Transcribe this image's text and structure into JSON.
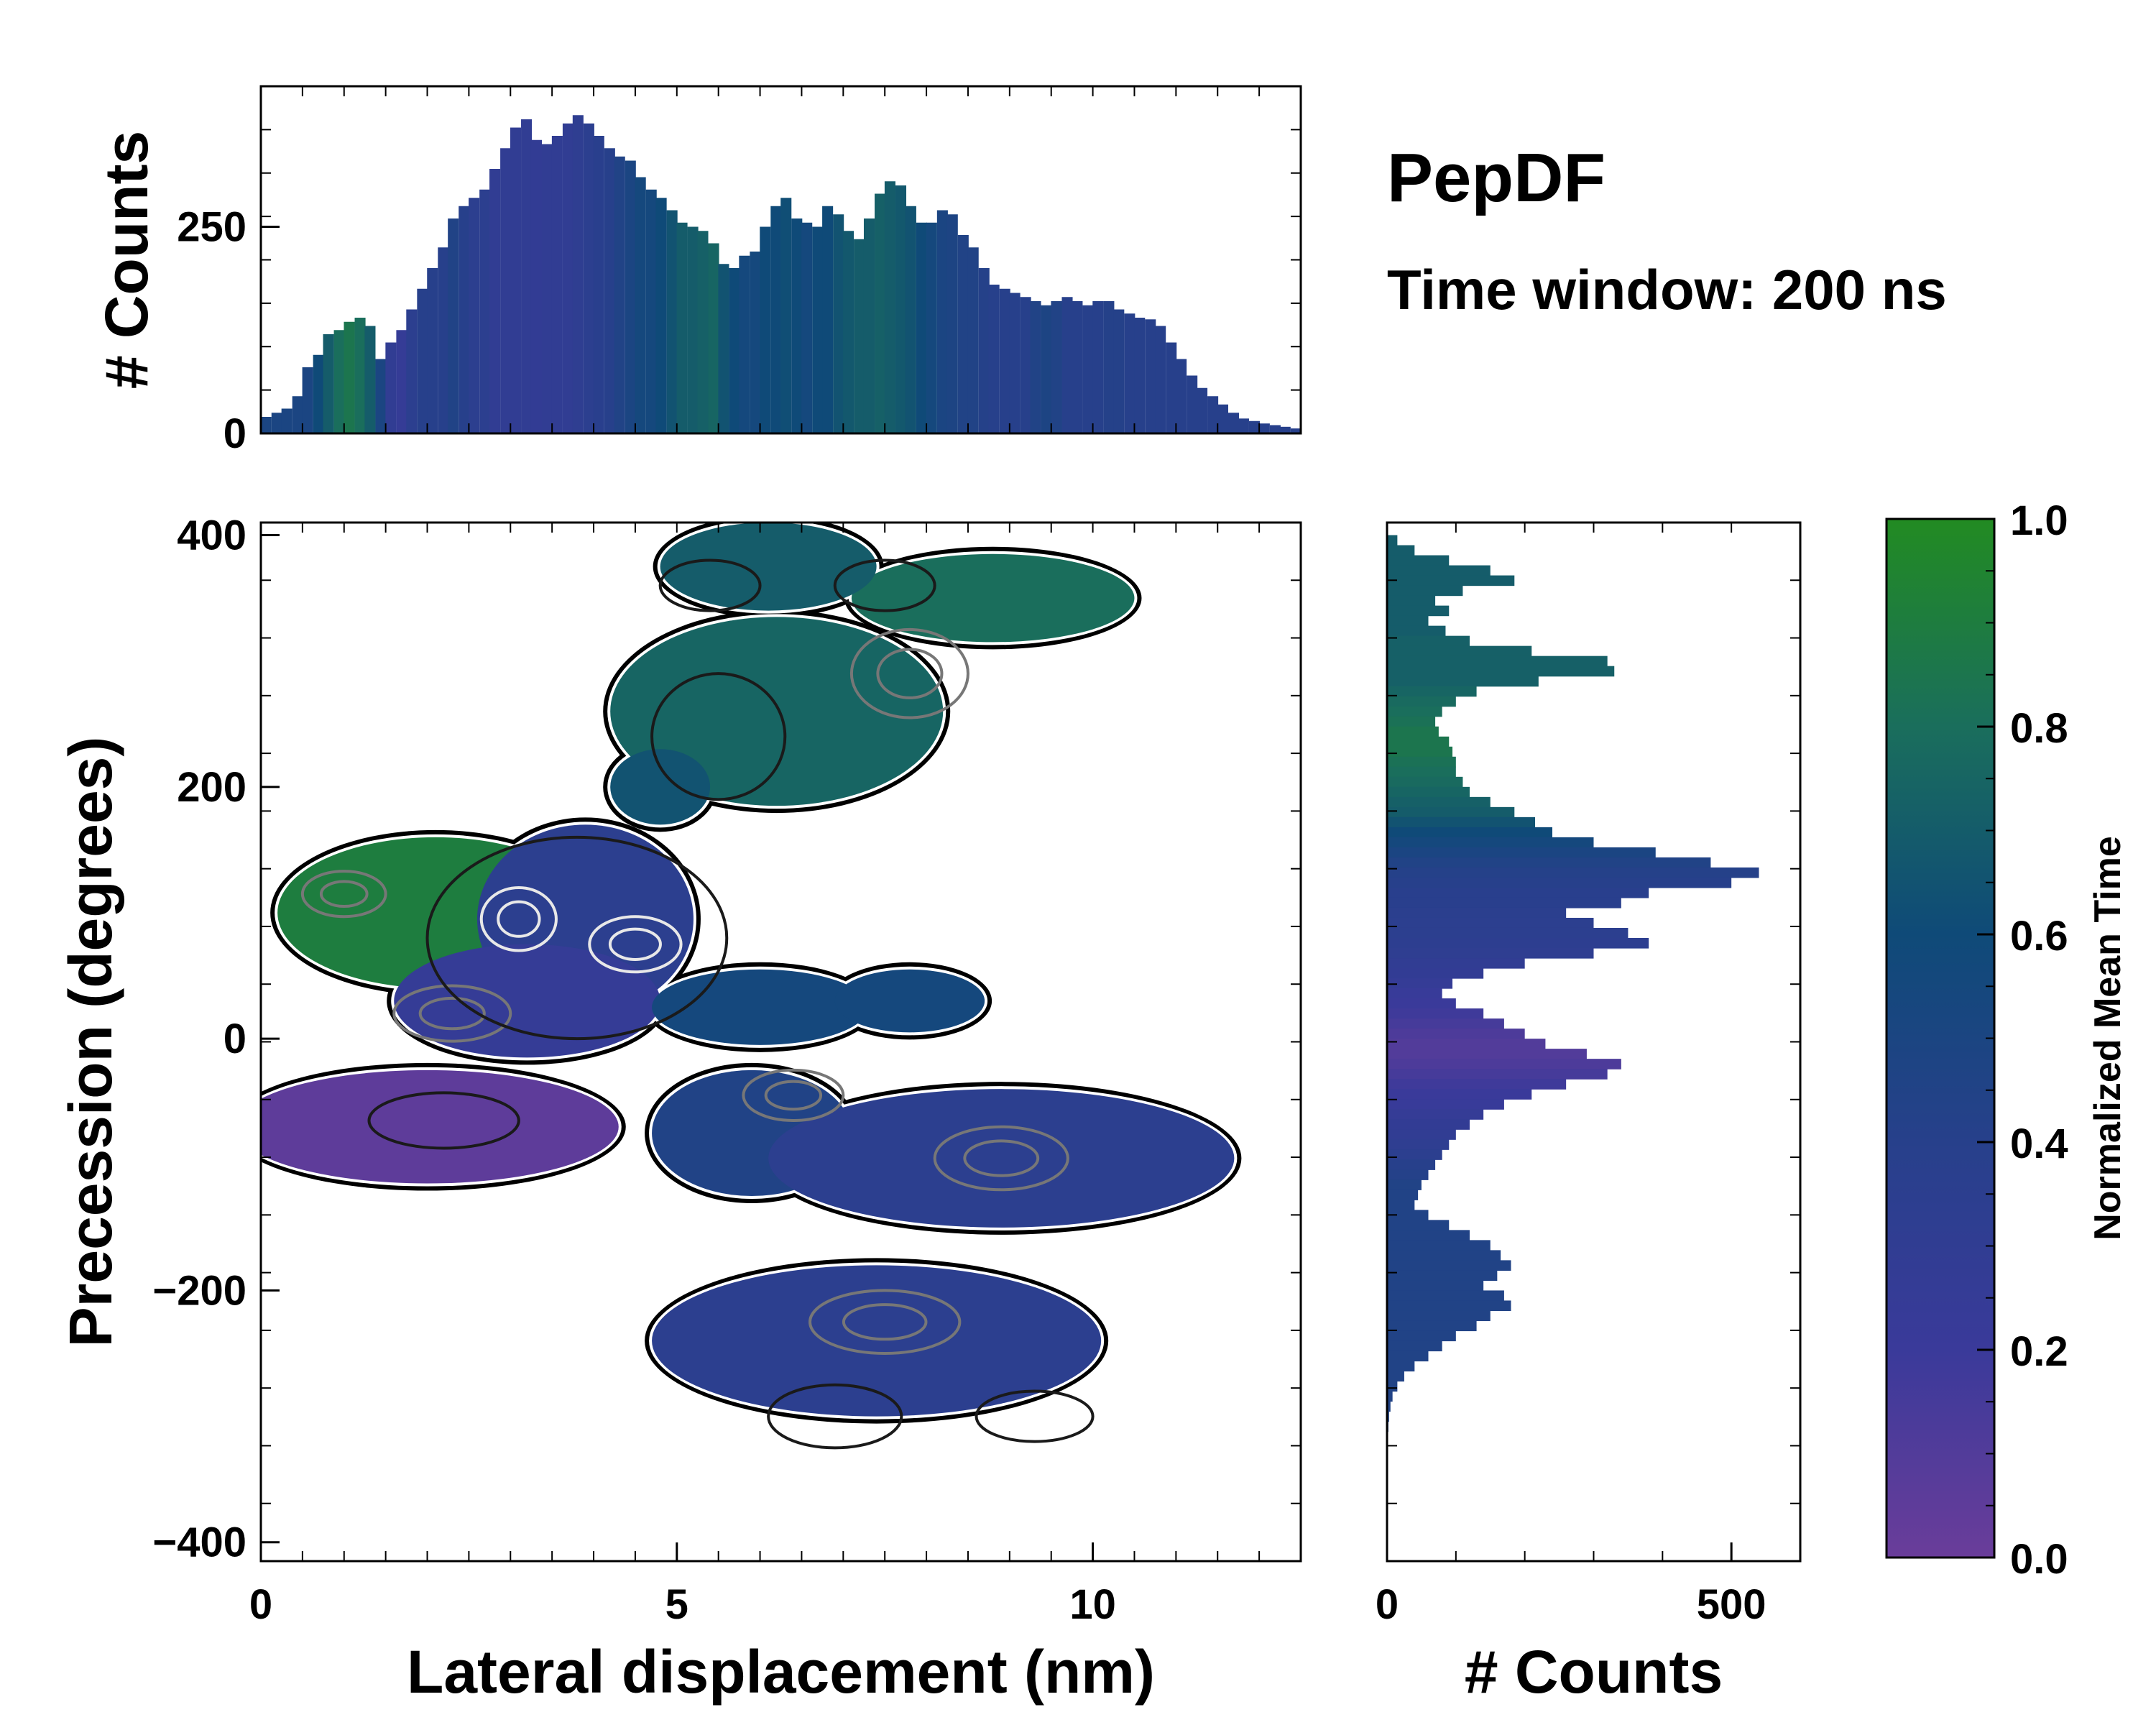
{
  "title": "PepDF",
  "subtitle": "Time window: 200 ns",
  "colormap": {
    "stops": [
      "#6a3d9a",
      "#3a3a9a",
      "#27408b",
      "#0f4a78",
      "#1a6e5c",
      "#228b22"
    ],
    "purple": "#6a3d9a",
    "blue": "#2d3e8f",
    "teal": "#1d6660",
    "green": "#228b22"
  },
  "chart_data": [
    {
      "id": "joint",
      "type": "heatmap",
      "xlabel": "Lateral displacement (nm)",
      "ylabel": "Precession (degrees)",
      "xlim": [
        0,
        12.5
      ],
      "ylim": [
        -415,
        410
      ],
      "xticks": [
        0,
        5,
        10
      ],
      "xtick_labels": [
        "0",
        "5",
        "10"
      ],
      "yticks": [
        -400,
        -200,
        0,
        200,
        400
      ],
      "ytick_labels": [
        "−400",
        "−200",
        "0",
        "200",
        "400"
      ],
      "blobs": [
        {
          "x": 2.1,
          "y": 100,
          "rx": 1.9,
          "ry": 60,
          "c": 0.9
        },
        {
          "x": 3.9,
          "y": 95,
          "rx": 1.3,
          "ry": 75,
          "c": 0.35
        },
        {
          "x": 3.2,
          "y": 30,
          "rx": 1.6,
          "ry": 45,
          "c": 0.25
        },
        {
          "x": 6.0,
          "y": 25,
          "rx": 1.3,
          "ry": 30,
          "c": 0.55
        },
        {
          "x": 7.8,
          "y": 30,
          "rx": 0.9,
          "ry": 25,
          "c": 0.55
        },
        {
          "x": 2.0,
          "y": -70,
          "rx": 2.3,
          "ry": 45,
          "c": 0.05
        },
        {
          "x": 5.9,
          "y": -75,
          "rx": 1.2,
          "ry": 50,
          "c": 0.45
        },
        {
          "x": 8.9,
          "y": -95,
          "rx": 2.8,
          "ry": 55,
          "c": 0.35
        },
        {
          "x": 7.4,
          "y": -240,
          "rx": 2.7,
          "ry": 60,
          "c": 0.35
        },
        {
          "x": 6.2,
          "y": 260,
          "rx": 2.0,
          "ry": 75,
          "c": 0.75
        },
        {
          "x": 8.8,
          "y": 350,
          "rx": 1.7,
          "ry": 35,
          "c": 0.8
        },
        {
          "x": 6.1,
          "y": 375,
          "rx": 1.3,
          "ry": 35,
          "c": 0.7
        },
        {
          "x": 4.8,
          "y": 200,
          "rx": 0.6,
          "ry": 30,
          "c": 0.65
        }
      ],
      "contours": [
        {
          "x": 3.1,
          "y": 95,
          "rx": 0.45,
          "ry": 25,
          "level": "high"
        },
        {
          "x": 4.5,
          "y": 75,
          "rx": 0.55,
          "ry": 22,
          "level": "high"
        },
        {
          "x": 2.3,
          "y": 20,
          "rx": 0.7,
          "ry": 22,
          "level": "mid"
        },
        {
          "x": 1.0,
          "y": 115,
          "rx": 0.5,
          "ry": 18,
          "level": "mid"
        },
        {
          "x": 7.8,
          "y": 290,
          "rx": 0.7,
          "ry": 35,
          "level": "mid"
        },
        {
          "x": 6.4,
          "y": -45,
          "rx": 0.6,
          "ry": 20,
          "level": "mid"
        },
        {
          "x": 8.9,
          "y": -95,
          "rx": 0.8,
          "ry": 25,
          "level": "mid"
        },
        {
          "x": 7.5,
          "y": -225,
          "rx": 0.9,
          "ry": 25,
          "level": "mid"
        },
        {
          "x": 2.2,
          "y": -65,
          "rx": 0.9,
          "ry": 22,
          "level": "low"
        },
        {
          "x": 5.4,
          "y": 360,
          "rx": 0.6,
          "ry": 20,
          "level": "low"
        },
        {
          "x": 7.5,
          "y": 360,
          "rx": 0.6,
          "ry": 20,
          "level": "low"
        },
        {
          "x": 5.5,
          "y": 240,
          "rx": 0.8,
          "ry": 50,
          "level": "low"
        },
        {
          "x": 3.8,
          "y": 80,
          "rx": 1.8,
          "ry": 80,
          "level": "low"
        },
        {
          "x": 9.3,
          "y": -300,
          "rx": 0.7,
          "ry": 20,
          "level": "low"
        },
        {
          "x": 6.9,
          "y": -300,
          "rx": 0.8,
          "ry": 25,
          "level": "low"
        }
      ]
    },
    {
      "id": "top_histogram",
      "type": "bar",
      "ylabel": "# Counts",
      "xlim": [
        0,
        12.5
      ],
      "ylim": [
        0,
        420
      ],
      "yticks": [
        0,
        250
      ],
      "ytick_labels": [
        "0",
        "250"
      ],
      "bin_width": 0.125,
      "x": [
        0.06,
        0.19,
        0.31,
        0.44,
        0.56,
        0.69,
        0.81,
        0.94,
        1.06,
        1.19,
        1.31,
        1.44,
        1.56,
        1.69,
        1.81,
        1.94,
        2.06,
        2.19,
        2.31,
        2.44,
        2.56,
        2.69,
        2.81,
        2.94,
        3.06,
        3.19,
        3.31,
        3.44,
        3.56,
        3.69,
        3.81,
        3.94,
        4.06,
        4.19,
        4.31,
        4.44,
        4.56,
        4.69,
        4.81,
        4.94,
        5.06,
        5.19,
        5.31,
        5.44,
        5.56,
        5.69,
        5.81,
        5.94,
        6.06,
        6.19,
        6.31,
        6.44,
        6.56,
        6.69,
        6.81,
        6.94,
        7.06,
        7.19,
        7.31,
        7.44,
        7.56,
        7.69,
        7.81,
        7.94,
        8.06,
        8.19,
        8.31,
        8.44,
        8.56,
        8.69,
        8.81,
        8.94,
        9.06,
        9.19,
        9.31,
        9.44,
        9.56,
        9.69,
        9.81,
        9.94,
        10.06,
        10.19,
        10.31,
        10.44,
        10.56,
        10.69,
        10.81,
        10.94,
        11.06,
        11.19,
        11.31,
        11.44,
        11.56,
        11.69,
        11.81,
        11.94,
        12.06,
        12.19,
        12.31,
        12.44
      ],
      "values": [
        20,
        25,
        30,
        45,
        80,
        95,
        120,
        125,
        135,
        140,
        130,
        90,
        110,
        125,
        150,
        175,
        200,
        225,
        260,
        275,
        285,
        295,
        320,
        345,
        370,
        380,
        355,
        350,
        360,
        375,
        385,
        375,
        360,
        345,
        335,
        330,
        310,
        295,
        285,
        270,
        255,
        250,
        245,
        230,
        205,
        200,
        215,
        220,
        250,
        275,
        285,
        260,
        255,
        250,
        275,
        265,
        245,
        235,
        260,
        290,
        305,
        300,
        275,
        255,
        255,
        270,
        265,
        240,
        225,
        200,
        180,
        175,
        170,
        165,
        160,
        155,
        160,
        165,
        160,
        155,
        160,
        160,
        150,
        145,
        140,
        138,
        130,
        110,
        90,
        70,
        55,
        45,
        35,
        25,
        18,
        15,
        12,
        10,
        8,
        6
      ],
      "colors": [
        0.5,
        0.5,
        0.5,
        0.5,
        0.5,
        0.6,
        0.7,
        0.8,
        0.85,
        0.8,
        0.7,
        0.5,
        0.3,
        0.25,
        0.35,
        0.4,
        0.4,
        0.4,
        0.45,
        0.4,
        0.35,
        0.35,
        0.3,
        0.3,
        0.3,
        0.3,
        0.28,
        0.3,
        0.3,
        0.3,
        0.32,
        0.35,
        0.38,
        0.4,
        0.45,
        0.5,
        0.55,
        0.55,
        0.6,
        0.65,
        0.7,
        0.7,
        0.72,
        0.75,
        0.65,
        0.6,
        0.55,
        0.55,
        0.6,
        0.6,
        0.62,
        0.6,
        0.55,
        0.6,
        0.6,
        0.65,
        0.68,
        0.7,
        0.7,
        0.72,
        0.7,
        0.68,
        0.65,
        0.6,
        0.55,
        0.5,
        0.48,
        0.45,
        0.45,
        0.42,
        0.4,
        0.4,
        0.4,
        0.4,
        0.45,
        0.48,
        0.45,
        0.4,
        0.4,
        0.4,
        0.4,
        0.42,
        0.42,
        0.4,
        0.4,
        0.4,
        0.4,
        0.4,
        0.4,
        0.4,
        0.4,
        0.4,
        0.4,
        0.4,
        0.4,
        0.4,
        0.4,
        0.4,
        0.4,
        0.4
      ]
    },
    {
      "id": "right_histogram",
      "type": "bar",
      "orientation": "horizontal",
      "xlabel": "# Counts",
      "xlim": [
        0,
        600
      ],
      "xticks": [
        0,
        500
      ],
      "xtick_labels": [
        "0",
        "500"
      ],
      "ylim": [
        -415,
        410
      ],
      "bin_height": 8,
      "y": [
        396,
        388,
        380,
        372,
        364,
        356,
        348,
        340,
        332,
        324,
        316,
        308,
        300,
        292,
        284,
        276,
        268,
        260,
        252,
        244,
        236,
        228,
        220,
        212,
        204,
        196,
        188,
        180,
        172,
        164,
        156,
        148,
        140,
        132,
        124,
        116,
        108,
        100,
        92,
        84,
        76,
        68,
        60,
        52,
        44,
        36,
        28,
        20,
        12,
        4,
        -4,
        -12,
        -20,
        -28,
        -36,
        -44,
        -52,
        -60,
        -68,
        -76,
        -84,
        -92,
        -100,
        -108,
        -116,
        -124,
        -132,
        -140,
        -148,
        -156,
        -164,
        -172,
        -180,
        -188,
        -196,
        -204,
        -212,
        -220,
        -228,
        -236,
        -244,
        -252,
        -260,
        -268,
        -276,
        -284,
        -292,
        -300,
        -308,
        -316,
        -324,
        -332,
        -340,
        -348,
        -356
      ],
      "values": [
        15,
        40,
        90,
        150,
        185,
        110,
        70,
        90,
        60,
        85,
        120,
        210,
        320,
        330,
        220,
        130,
        100,
        80,
        70,
        75,
        90,
        95,
        100,
        100,
        110,
        120,
        150,
        185,
        215,
        240,
        300,
        390,
        470,
        540,
        500,
        380,
        340,
        260,
        300,
        350,
        380,
        300,
        200,
        140,
        95,
        80,
        100,
        140,
        170,
        200,
        230,
        290,
        340,
        320,
        260,
        210,
        170,
        140,
        120,
        100,
        90,
        80,
        70,
        60,
        50,
        45,
        40,
        60,
        90,
        120,
        150,
        165,
        180,
        160,
        140,
        170,
        180,
        150,
        130,
        100,
        80,
        60,
        40,
        25,
        15,
        8,
        5,
        3,
        2,
        1,
        1,
        0,
        0,
        0,
        0
      ],
      "colors": [
        0.7,
        0.7,
        0.7,
        0.7,
        0.7,
        0.7,
        0.7,
        0.7,
        0.7,
        0.7,
        0.72,
        0.72,
        0.72,
        0.72,
        0.72,
        0.75,
        0.78,
        0.8,
        0.82,
        0.85,
        0.85,
        0.85,
        0.82,
        0.8,
        0.78,
        0.75,
        0.72,
        0.7,
        0.65,
        0.6,
        0.55,
        0.5,
        0.45,
        0.42,
        0.4,
        0.38,
        0.38,
        0.36,
        0.35,
        0.35,
        0.34,
        0.32,
        0.3,
        0.28,
        0.25,
        0.22,
        0.2,
        0.18,
        0.15,
        0.12,
        0.1,
        0.1,
        0.12,
        0.15,
        0.18,
        0.2,
        0.22,
        0.25,
        0.28,
        0.3,
        0.32,
        0.35,
        0.4,
        0.42,
        0.45,
        0.45,
        0.45,
        0.45,
        0.45,
        0.45,
        0.45,
        0.45,
        0.45,
        0.45,
        0.45,
        0.45,
        0.45,
        0.45,
        0.45,
        0.45,
        0.45,
        0.45,
        0.45,
        0.45,
        0.45,
        0.45,
        0.45,
        0.45,
        0.45,
        0.45,
        0.45,
        0.45,
        0.45,
        0.45,
        0.45
      ]
    },
    {
      "id": "colorbar",
      "type": "colorbar",
      "label": "Normalized Mean Time",
      "lim": [
        0.0,
        1.0
      ],
      "ticks": [
        0.0,
        0.2,
        0.4,
        0.6,
        0.8,
        1.0
      ],
      "tick_labels": [
        "0.0",
        "0.2",
        "0.4",
        "0.6",
        "0.8",
        "1.0"
      ]
    }
  ]
}
